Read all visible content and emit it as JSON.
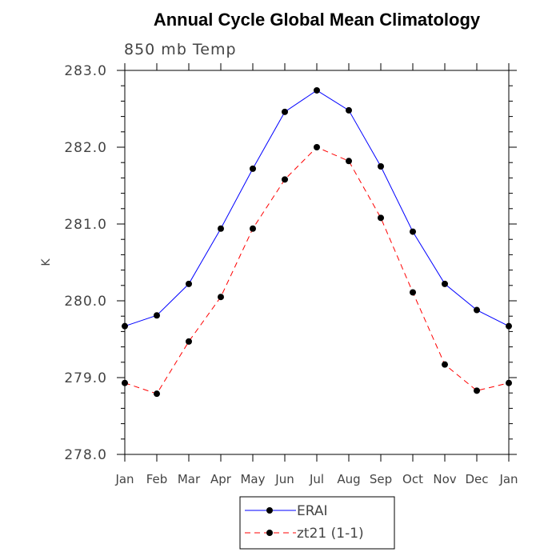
{
  "chart_data": {
    "type": "line",
    "title": "Annual Cycle Global Mean Climatology",
    "subtitle": "850 mb Temp",
    "xlabel": "",
    "ylabel": "K",
    "categories": [
      "Jan",
      "Feb",
      "Mar",
      "Apr",
      "May",
      "Jun",
      "Jul",
      "Aug",
      "Sep",
      "Oct",
      "Nov",
      "Dec",
      "Jan"
    ],
    "ylim": [
      278.0,
      283.0
    ],
    "yticks": [
      "278.0",
      "279.0",
      "280.0",
      "281.0",
      "282.0",
      "283.0"
    ],
    "grid": false,
    "legend_position": "bottom-center",
    "series": [
      {
        "name": "ERAI",
        "color": "#0000ff",
        "dash": "solid",
        "values": [
          279.67,
          279.81,
          280.22,
          280.94,
          281.72,
          282.46,
          282.74,
          282.48,
          281.75,
          280.9,
          280.22,
          279.88,
          279.67
        ]
      },
      {
        "name": "zt21 (1-1)",
        "color": "#ff0000",
        "dash": "dashed",
        "values": [
          278.93,
          278.79,
          279.47,
          280.05,
          280.94,
          281.58,
          282.0,
          281.82,
          281.08,
          280.11,
          279.17,
          278.83,
          278.93
        ]
      }
    ]
  }
}
